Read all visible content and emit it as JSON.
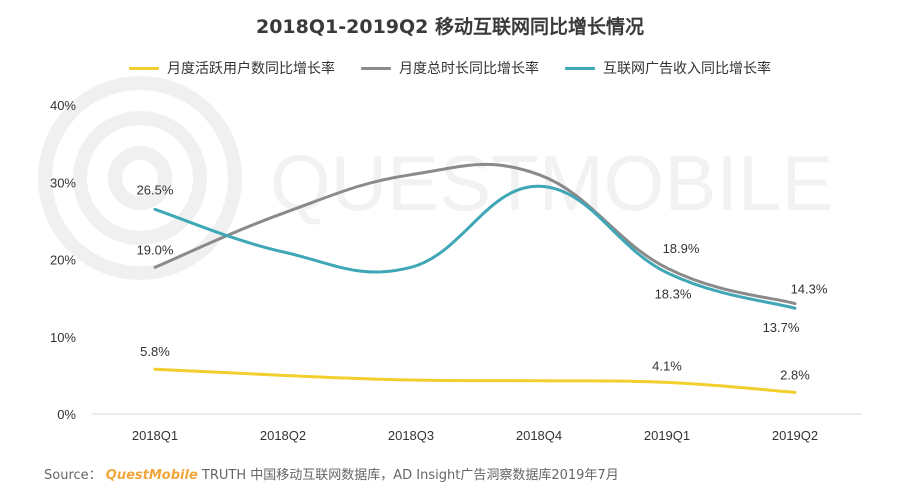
{
  "chart_data": {
    "type": "line",
    "title": "2018Q1-2019Q2 移动互联网同比增长情况",
    "categories": [
      "2018Q1",
      "2018Q2",
      "2018Q3",
      "2018Q4",
      "2019Q1",
      "2019Q2"
    ],
    "ylim": [
      0,
      40
    ],
    "yticks": [
      "0%",
      "10%",
      "20%",
      "30%",
      "40%"
    ],
    "grid": false,
    "legend_position": "top",
    "series": [
      {
        "name": "月度活跃用户数同比增长率",
        "color": "#f2cf2c",
        "values": [
          5.8,
          5.0,
          4.4,
          4.3,
          4.1,
          2.8
        ],
        "labels": [
          {
            "index": 0,
            "text": "5.8%"
          },
          {
            "index": 4,
            "text": "4.1%"
          },
          {
            "index": 5,
            "text": "2.8%"
          }
        ]
      },
      {
        "name": "月度总时长同比增长率",
        "color": "#8a8a8a",
        "values": [
          19.0,
          26.0,
          31.0,
          31.0,
          18.9,
          14.3
        ],
        "labels": [
          {
            "index": 0,
            "text": "19.0%"
          },
          {
            "index": 4,
            "text": "18.9%"
          },
          {
            "index": 5,
            "text": "14.3%"
          }
        ]
      },
      {
        "name": "互联网广告收入同比增长率",
        "color": "#3fa7b6",
        "values": [
          26.5,
          21.0,
          19.0,
          29.5,
          18.3,
          13.7
        ],
        "labels": [
          {
            "index": 0,
            "text": "26.5%"
          },
          {
            "index": 4,
            "text": "18.3%"
          },
          {
            "index": 5,
            "text": "13.7%"
          }
        ]
      }
    ]
  },
  "watermark": "QUESTMOBILE",
  "source": {
    "prefix": "Source：",
    "brand": "QuestMobile",
    "text": "TRUTH 中国移动互联网数据库，AD Insight广告洞察数据库2019年7月"
  }
}
